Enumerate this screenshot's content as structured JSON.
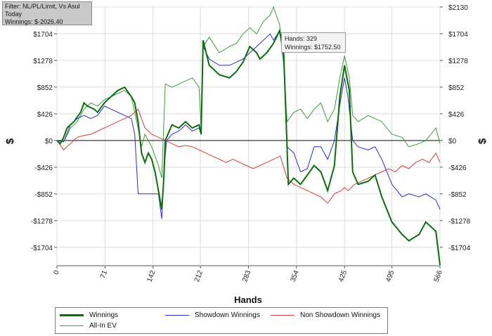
{
  "filter": {
    "line1": "Filter: NL/PL/Limit, Vs Asul",
    "line2": "Today",
    "line3": "Winnings: $-2026.40"
  },
  "tooltip": {
    "hands": "Hands: 329",
    "winnings": "Winnings: $1752.50"
  },
  "chart_data": {
    "type": "line",
    "xlabel": "Hands",
    "ylabel_left": "$",
    "ylabel_right": "$",
    "xlim": [
      0,
      566
    ],
    "ylim": [
      -1998,
      2130
    ],
    "x_ticks": [
      0,
      71,
      142,
      212,
      283,
      354,
      425,
      495,
      566
    ],
    "y_ticks": [
      -1704,
      -1278,
      -852,
      -426,
      0,
      426,
      852,
      1278,
      1704,
      2130
    ],
    "y_tick_labels": [
      "-$1704",
      "-$1278",
      "-$852",
      "-$426",
      "$0",
      "$426",
      "$852",
      "$1278",
      "$1704",
      "$2130"
    ],
    "grid": true,
    "legend_position": "bottom",
    "series": [
      {
        "name": "Winnings",
        "color": "#0a6e0a",
        "width": 2,
        "points": [
          [
            0,
            0
          ],
          [
            5,
            -50
          ],
          [
            10,
            50
          ],
          [
            15,
            200
          ],
          [
            25,
            300
          ],
          [
            35,
            450
          ],
          [
            40,
            600
          ],
          [
            45,
            550
          ],
          [
            55,
            500
          ],
          [
            60,
            450
          ],
          [
            70,
            600
          ],
          [
            80,
            700
          ],
          [
            90,
            800
          ],
          [
            100,
            850
          ],
          [
            110,
            700
          ],
          [
            115,
            600
          ],
          [
            120,
            300
          ],
          [
            125,
            -200
          ],
          [
            130,
            -350
          ],
          [
            135,
            -200
          ],
          [
            140,
            -300
          ],
          [
            145,
            -500
          ],
          [
            150,
            -800
          ],
          [
            155,
            -1100
          ],
          [
            158,
            -600
          ],
          [
            160,
            0
          ],
          [
            170,
            250
          ],
          [
            180,
            200
          ],
          [
            190,
            300
          ],
          [
            200,
            200
          ],
          [
            210,
            250
          ],
          [
            213,
            100
          ],
          [
            216,
            1600
          ],
          [
            225,
            1200
          ],
          [
            240,
            1050
          ],
          [
            255,
            1000
          ],
          [
            265,
            1100
          ],
          [
            275,
            1250
          ],
          [
            285,
            1500
          ],
          [
            295,
            1400
          ],
          [
            300,
            1300
          ],
          [
            310,
            1400
          ],
          [
            320,
            1550
          ],
          [
            329,
            1752
          ],
          [
            335,
            1400
          ],
          [
            338,
            500
          ],
          [
            342,
            -700
          ],
          [
            350,
            -600
          ],
          [
            360,
            -700
          ],
          [
            370,
            -550
          ],
          [
            380,
            -400
          ],
          [
            390,
            -500
          ],
          [
            400,
            -800
          ],
          [
            410,
            -400
          ],
          [
            418,
            700
          ],
          [
            425,
            1200
          ],
          [
            432,
            800
          ],
          [
            437,
            -500
          ],
          [
            445,
            -700
          ],
          [
            460,
            -650
          ],
          [
            470,
            -550
          ],
          [
            480,
            -900
          ],
          [
            495,
            -1300
          ],
          [
            510,
            -1500
          ],
          [
            520,
            -1600
          ],
          [
            535,
            -1500
          ],
          [
            545,
            -1300
          ],
          [
            560,
            -1450
          ],
          [
            566,
            -1990
          ]
        ]
      },
      {
        "name": "Showdown Winnings",
        "color": "#2c2ccc",
        "width": 1,
        "points": [
          [
            0,
            0
          ],
          [
            10,
            -20
          ],
          [
            20,
            250
          ],
          [
            30,
            350
          ],
          [
            40,
            400
          ],
          [
            50,
            350
          ],
          [
            60,
            400
          ],
          [
            70,
            550
          ],
          [
            80,
            500
          ],
          [
            90,
            450
          ],
          [
            100,
            400
          ],
          [
            110,
            350
          ],
          [
            115,
            100
          ],
          [
            120,
            -850
          ],
          [
            130,
            -850
          ],
          [
            150,
            -850
          ],
          [
            155,
            -1250
          ],
          [
            158,
            -500
          ],
          [
            162,
            0
          ],
          [
            170,
            100
          ],
          [
            180,
            150
          ],
          [
            190,
            250
          ],
          [
            200,
            150
          ],
          [
            210,
            200
          ],
          [
            213,
            100
          ],
          [
            216,
            1500
          ],
          [
            225,
            1300
          ],
          [
            240,
            1200
          ],
          [
            255,
            1200
          ],
          [
            265,
            1250
          ],
          [
            275,
            1300
          ],
          [
            285,
            1400
          ],
          [
            295,
            1500
          ],
          [
            305,
            1600
          ],
          [
            315,
            1700
          ],
          [
            320,
            1600
          ],
          [
            329,
            1750
          ],
          [
            335,
            1300
          ],
          [
            340,
            -100
          ],
          [
            350,
            -200
          ],
          [
            360,
            -500
          ],
          [
            370,
            -450
          ],
          [
            380,
            -100
          ],
          [
            390,
            -100
          ],
          [
            400,
            -300
          ],
          [
            410,
            0
          ],
          [
            420,
            700
          ],
          [
            425,
            1000
          ],
          [
            430,
            700
          ],
          [
            437,
            0
          ],
          [
            445,
            -100
          ],
          [
            460,
            -150
          ],
          [
            470,
            -100
          ],
          [
            480,
            -300
          ],
          [
            495,
            -700
          ],
          [
            510,
            -900
          ],
          [
            520,
            -850
          ],
          [
            535,
            -900
          ],
          [
            545,
            -850
          ],
          [
            560,
            -950
          ],
          [
            566,
            -1100
          ]
        ]
      },
      {
        "name": "Non Showdown Winnings",
        "color": "#d23c3c",
        "width": 1,
        "points": [
          [
            0,
            0
          ],
          [
            10,
            -150
          ],
          [
            20,
            -50
          ],
          [
            30,
            50
          ],
          [
            40,
            80
          ],
          [
            50,
            100
          ],
          [
            60,
            150
          ],
          [
            70,
            200
          ],
          [
            80,
            250
          ],
          [
            90,
            300
          ],
          [
            100,
            350
          ],
          [
            110,
            400
          ],
          [
            120,
            500
          ],
          [
            125,
            350
          ],
          [
            130,
            200
          ],
          [
            140,
            100
          ],
          [
            150,
            50
          ],
          [
            160,
            0
          ],
          [
            170,
            -50
          ],
          [
            180,
            -100
          ],
          [
            190,
            -80
          ],
          [
            200,
            -100
          ],
          [
            210,
            -150
          ],
          [
            220,
            -200
          ],
          [
            230,
            -250
          ],
          [
            240,
            -300
          ],
          [
            250,
            -350
          ],
          [
            260,
            -300
          ],
          [
            270,
            -350
          ],
          [
            280,
            -400
          ],
          [
            290,
            -450
          ],
          [
            300,
            -400
          ],
          [
            310,
            -350
          ],
          [
            320,
            -300
          ],
          [
            330,
            -250
          ],
          [
            340,
            -600
          ],
          [
            350,
            -700
          ],
          [
            360,
            -750
          ],
          [
            370,
            -800
          ],
          [
            380,
            -850
          ],
          [
            390,
            -900
          ],
          [
            400,
            -1000
          ],
          [
            410,
            -850
          ],
          [
            420,
            -800
          ],
          [
            425,
            -750
          ],
          [
            430,
            -800
          ],
          [
            440,
            -700
          ],
          [
            450,
            -650
          ],
          [
            460,
            -600
          ],
          [
            470,
            -550
          ],
          [
            480,
            -500
          ],
          [
            490,
            -450
          ],
          [
            500,
            -500
          ],
          [
            510,
            -400
          ],
          [
            520,
            -450
          ],
          [
            530,
            -350
          ],
          [
            540,
            -300
          ],
          [
            550,
            -350
          ],
          [
            560,
            -200
          ],
          [
            566,
            -350
          ]
        ]
      },
      {
        "name": "All-In EV",
        "color": "#3d9b3d",
        "width": 1,
        "points": [
          [
            0,
            0
          ],
          [
            10,
            -20
          ],
          [
            20,
            200
          ],
          [
            30,
            300
          ],
          [
            40,
            500
          ],
          [
            50,
            600
          ],
          [
            60,
            550
          ],
          [
            70,
            650
          ],
          [
            80,
            700
          ],
          [
            90,
            750
          ],
          [
            100,
            800
          ],
          [
            110,
            700
          ],
          [
            120,
            200
          ],
          [
            125,
            -100
          ],
          [
            130,
            100
          ],
          [
            140,
            -100
          ],
          [
            150,
            -400
          ],
          [
            155,
            -600
          ],
          [
            160,
            900
          ],
          [
            170,
            850
          ],
          [
            180,
            900
          ],
          [
            190,
            950
          ],
          [
            200,
            1000
          ],
          [
            210,
            850
          ],
          [
            213,
            200
          ],
          [
            216,
            1500
          ],
          [
            225,
            1650
          ],
          [
            240,
            1400
          ],
          [
            255,
            1500
          ],
          [
            265,
            1550
          ],
          [
            275,
            1700
          ],
          [
            285,
            1800
          ],
          [
            295,
            1700
          ],
          [
            305,
            1900
          ],
          [
            315,
            2000
          ],
          [
            320,
            2130
          ],
          [
            329,
            1850
          ],
          [
            335,
            1200
          ],
          [
            340,
            300
          ],
          [
            350,
            450
          ],
          [
            360,
            500
          ],
          [
            370,
            350
          ],
          [
            380,
            500
          ],
          [
            390,
            600
          ],
          [
            400,
            300
          ],
          [
            410,
            500
          ],
          [
            418,
            1000
          ],
          [
            425,
            1350
          ],
          [
            432,
            1000
          ],
          [
            437,
            400
          ],
          [
            445,
            300
          ],
          [
            460,
            400
          ],
          [
            470,
            350
          ],
          [
            480,
            300
          ],
          [
            495,
            100
          ],
          [
            510,
            50
          ],
          [
            520,
            -100
          ],
          [
            535,
            -50
          ],
          [
            545,
            0
          ],
          [
            560,
            200
          ],
          [
            566,
            -50
          ]
        ]
      }
    ]
  }
}
